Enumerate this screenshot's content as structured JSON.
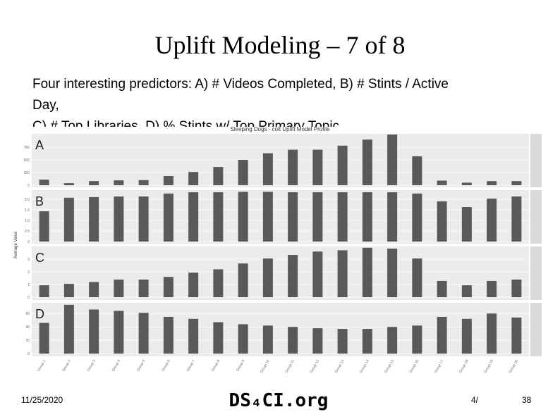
{
  "slide": {
    "title": "Uplift Modeling – 7 of 8",
    "body": [
      "Four interesting predictors: A) # Videos Completed, B) # Stints / Active",
      "Day,",
      "C) # Top Libraries, D) % Stints w/ Top Primary Topic"
    ],
    "date": "11/25/2020",
    "brand": "DS₄CI.org",
    "page_prefix": "4/",
    "page_number": "38"
  },
  "figure": {
    "title": "Sleeping Dogs - colt Uplift Model Profile",
    "y_label": "Average Value",
    "color": "#595959",
    "grid": true
  },
  "chart_data": [
    {
      "type": "bar",
      "panel": "A",
      "values": [
        110,
        40,
        80,
        95,
        100,
        180,
        260,
        360,
        500,
        630,
        700,
        700,
        780,
        900,
        1000,
        570,
        90,
        50,
        80,
        80
      ],
      "ylim": [
        -42,
        1014
      ],
      "yticks": [
        0,
        250,
        500,
        750
      ]
    },
    {
      "type": "bar",
      "panel": "B",
      "values": [
        1.43,
        2.07,
        2.1,
        2.13,
        2.13,
        2.27,
        2.33,
        2.33,
        2.35,
        2.35,
        2.33,
        2.33,
        2.33,
        2.33,
        2.33,
        2.27,
        1.9,
        1.63,
        2.03,
        2.13
      ],
      "ylim": [
        -0.1,
        2.43
      ],
      "yticks": [
        0,
        0.5,
        {
          "value": 1,
          "label": "1.0"
        },
        1.5,
        {
          "value": 2,
          "label": "2.0"
        }
      ]
    },
    {
      "type": "bar",
      "panel": "C",
      "values": [
        0.94,
        1.05,
        1.2,
        1.39,
        1.39,
        1.6,
        1.94,
        2.2,
        2.66,
        3.05,
        3.33,
        3.6,
        3.7,
        3.9,
        3.83,
        3.05,
        1.28,
        0.94,
        1.28,
        1.39
      ],
      "ylim": [
        -0.22,
        4.0
      ],
      "yticks": [
        0,
        1,
        2,
        3
      ]
    },
    {
      "type": "bar",
      "panel": "D",
      "values": [
        46,
        73,
        66,
        64,
        61,
        55,
        52,
        47,
        44,
        42,
        40,
        38,
        37,
        37,
        40,
        42,
        55,
        52,
        60,
        54
      ],
      "ylim": [
        -4,
        76
      ],
      "yticks": [
        0,
        20,
        40,
        60
      ],
      "categories": [
        "Group 1",
        "Group 2",
        "Group 3",
        "Group 4",
        "Group 5",
        "Group 6",
        "Group 7",
        "Group 8",
        "Group 9",
        "Group 10",
        "Group 11",
        "Group 12",
        "Group 13",
        "Group 14",
        "Group 15",
        "Group 16",
        "Group 17",
        "Group 18",
        "Group 19",
        "Group 20"
      ]
    }
  ]
}
